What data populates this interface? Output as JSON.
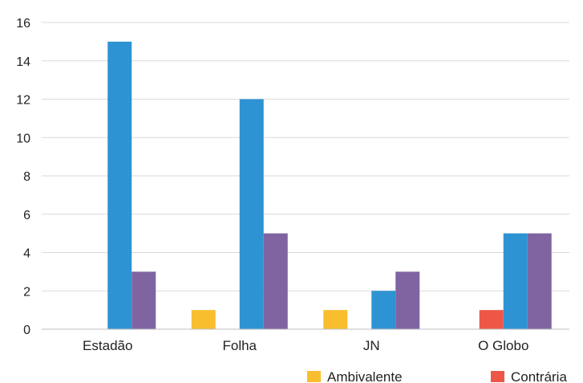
{
  "chart_data": {
    "type": "bar",
    "title": "",
    "xlabel": "",
    "ylabel": "",
    "categories": [
      "Estadão",
      "Folha",
      "JN",
      "O Globo"
    ],
    "ylim": [
      0,
      16
    ],
    "yticks": [
      0,
      2,
      4,
      6,
      8,
      10,
      12,
      14,
      16
    ],
    "grid": true,
    "legend_position": "bottom",
    "series": [
      {
        "name": "Ambivalente",
        "color": "#F9BE2E",
        "values": [
          0,
          1,
          1,
          0
        ],
        "in_legend": true
      },
      {
        "name": "Contrária",
        "color": "#EE5748",
        "values": [
          0,
          0,
          0,
          1
        ],
        "in_legend": true
      },
      {
        "name": "",
        "color": "#2E93D2",
        "values": [
          15,
          12,
          2,
          5
        ],
        "in_legend": false
      },
      {
        "name": "",
        "color": "#8064A2",
        "values": [
          3,
          5,
          3,
          5
        ],
        "in_legend": false
      }
    ]
  }
}
